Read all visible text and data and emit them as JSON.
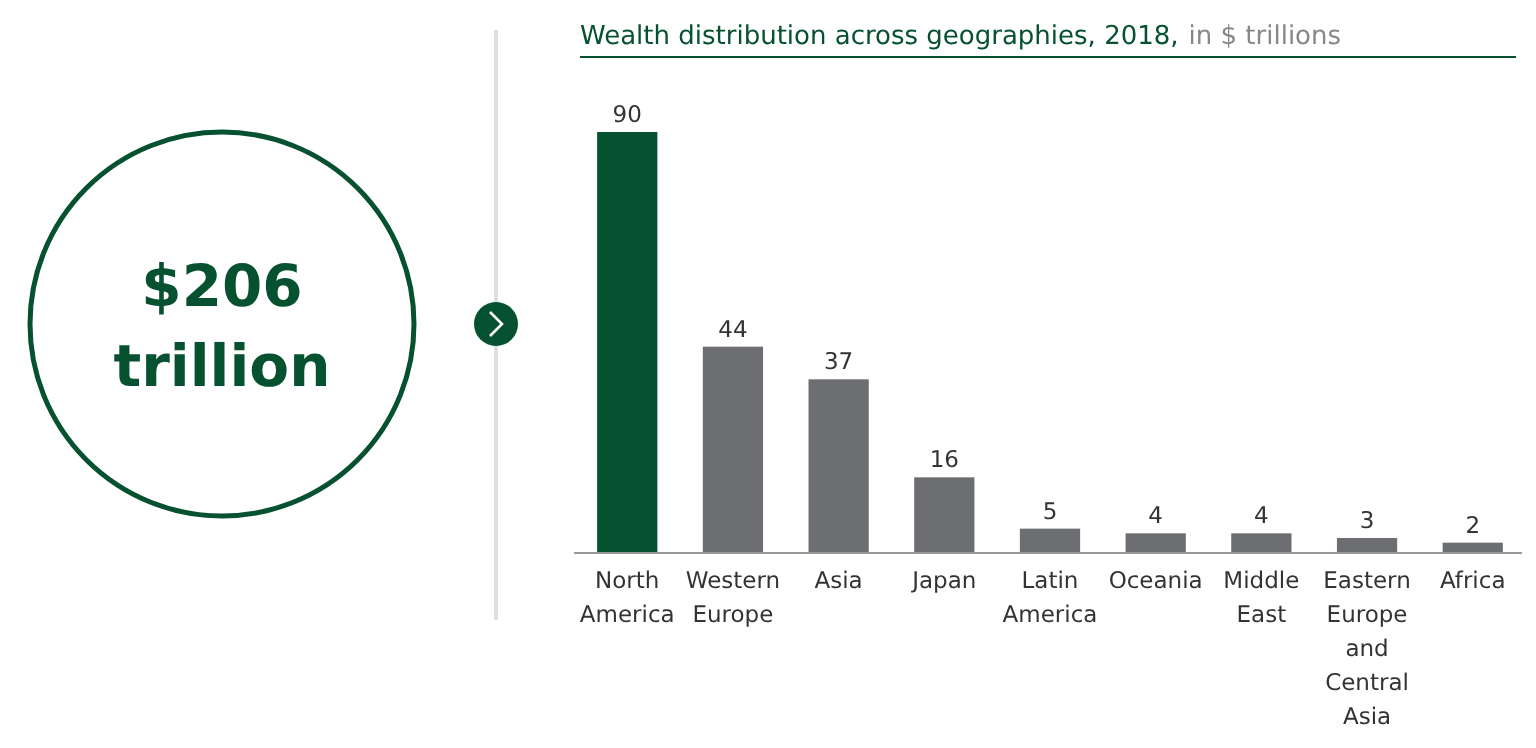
{
  "chart_data": {
    "type": "bar",
    "title": "Wealth distribution across geographies, 2018,",
    "subtitle": "in $ trillions",
    "categories": [
      "North America",
      "Western Europe",
      "Asia",
      "Japan",
      "Latin America",
      "Oceania",
      "Middle East",
      "Eastern Europe and Central Asia",
      "Africa"
    ],
    "values": [
      90,
      44,
      37,
      16,
      5,
      4,
      4,
      3,
      2
    ],
    "colors": [
      "#06512f",
      "#6d6e71",
      "#6d6e71",
      "#6d6e71",
      "#6d6e71",
      "#6d6e71",
      "#6d6e71",
      "#6d6e71",
      "#6d6e71"
    ],
    "data_labels": true,
    "annotations": [
      "$206 trillion"
    ]
  }
}
